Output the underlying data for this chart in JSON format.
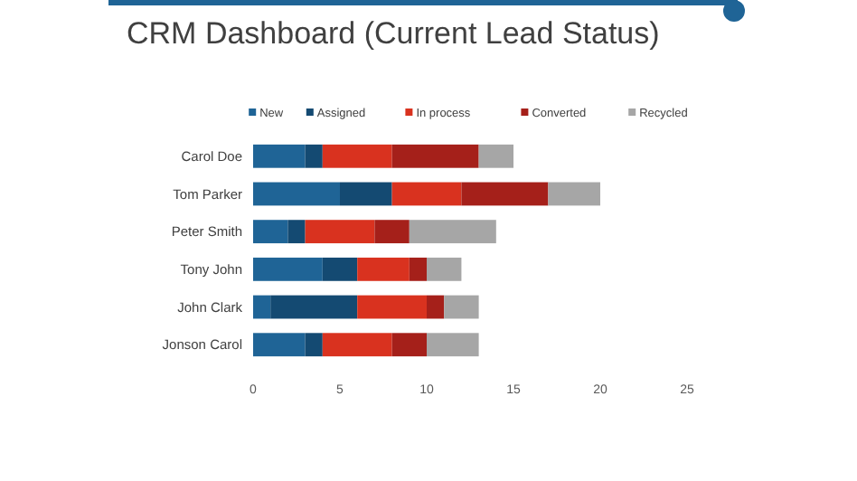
{
  "chart_data": {
    "type": "bar",
    "title": "CRM Dashboard (Current Lead Status)",
    "orientation": "horizontal",
    "stacked": true,
    "legend": "top",
    "categories": [
      "Carol Doe",
      "Tom Parker",
      "Peter Smith",
      "Tony John",
      "John Clark",
      "Jonson Carol"
    ],
    "series": [
      {
        "name": "New",
        "color": "#1f6496",
        "values": [
          3,
          5,
          2,
          4,
          1,
          3
        ]
      },
      {
        "name": "Assigned",
        "color": "#144a72",
        "values": [
          1,
          3,
          1,
          2,
          5,
          1
        ]
      },
      {
        "name": "In process",
        "color": "#d9321f",
        "values": [
          4,
          4,
          4,
          3,
          4,
          4
        ]
      },
      {
        "name": "Converted",
        "color": "#a5201a",
        "values": [
          5,
          5,
          2,
          1,
          1,
          2
        ]
      },
      {
        "name": "Recycled",
        "color": "#a6a6a6",
        "values": [
          2,
          3,
          5,
          2,
          2,
          3
        ]
      }
    ],
    "xlim": [
      0,
      25
    ],
    "xticks": [
      0,
      5,
      10,
      15,
      20,
      25
    ]
  }
}
